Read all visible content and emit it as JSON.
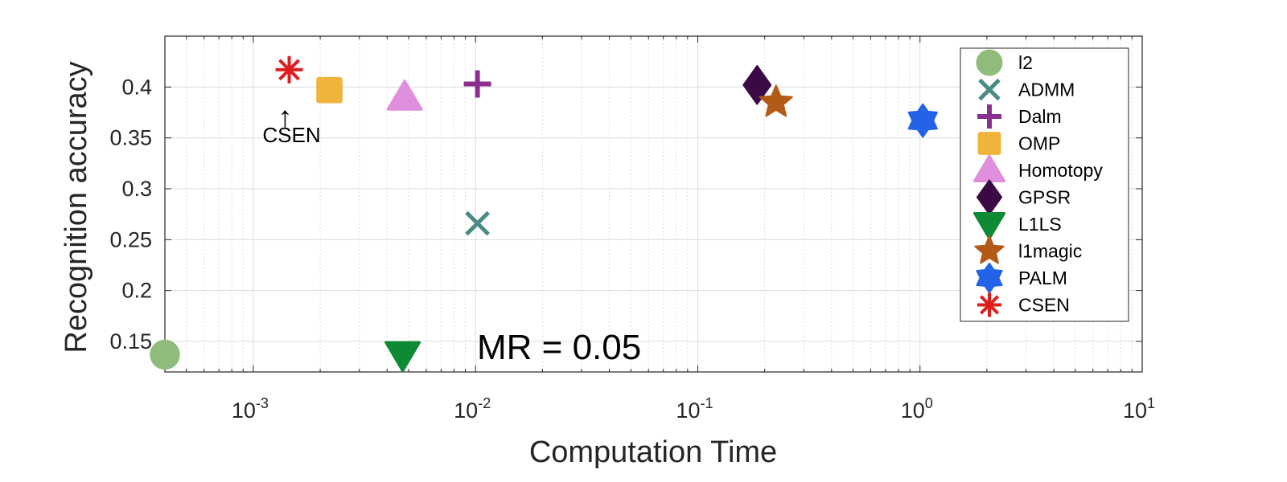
{
  "chart_data": {
    "type": "scatter",
    "xlabel": "Computation  Time",
    "ylabel": "Recognition accuracy",
    "xscale": "log",
    "xlim": [
      0.0004,
      10
    ],
    "ylim": [
      0.12,
      0.45
    ],
    "xticks": [
      {
        "base": "10",
        "exp": "-3",
        "value": 0.001
      },
      {
        "base": "10",
        "exp": "-2",
        "value": 0.01
      },
      {
        "base": "10",
        "exp": "-1",
        "value": 0.1
      },
      {
        "base": "10",
        "exp": "0",
        "value": 1
      },
      {
        "base": "10",
        "exp": "1",
        "value": 10
      }
    ],
    "yticks": [
      "0.15",
      "0.2",
      "0.25",
      "0.3",
      "0.35",
      "0.4"
    ],
    "grid": true,
    "legend_position": "top-right",
    "series": [
      {
        "name": "l2",
        "marker": "circle",
        "color": "#8fbc7a",
        "x": 0.0004,
        "y": 0.137
      },
      {
        "name": "ADMM",
        "marker": "x",
        "color": "#4a8a84",
        "x": 0.0102,
        "y": 0.266
      },
      {
        "name": "Dalm",
        "marker": "plus",
        "color": "#8b2f8f",
        "x": 0.0102,
        "y": 0.403
      },
      {
        "name": "OMP",
        "marker": "square",
        "color": "#f0b43c",
        "x": 0.0022,
        "y": 0.397
      },
      {
        "name": "Homotopy",
        "marker": "triangle-up",
        "color": "#df8fdb",
        "x": 0.0048,
        "y": 0.39
      },
      {
        "name": "GPSR",
        "marker": "diamond",
        "color": "#3b0a45",
        "x": 0.185,
        "y": 0.402
      },
      {
        "name": "L1LS",
        "marker": "triangle-down",
        "color": "#0f8a34",
        "x": 0.0047,
        "y": 0.137
      },
      {
        "name": "l1magic",
        "marker": "star5",
        "color": "#b25a17",
        "x": 0.225,
        "y": 0.385
      },
      {
        "name": "PALM",
        "marker": "hexagram",
        "color": "#2263e8",
        "x": 1.03,
        "y": 0.367
      },
      {
        "name": "CSEN",
        "marker": "asterisk",
        "color": "#e01d1d",
        "x": 0.00145,
        "y": 0.417
      }
    ],
    "annotations": [
      {
        "text": "CSEN",
        "arrow": "↑",
        "x": 0.00145,
        "y": 0.375
      },
      {
        "text": "MR = 0.05",
        "x": 0.0095,
        "y": 0.135
      }
    ]
  }
}
